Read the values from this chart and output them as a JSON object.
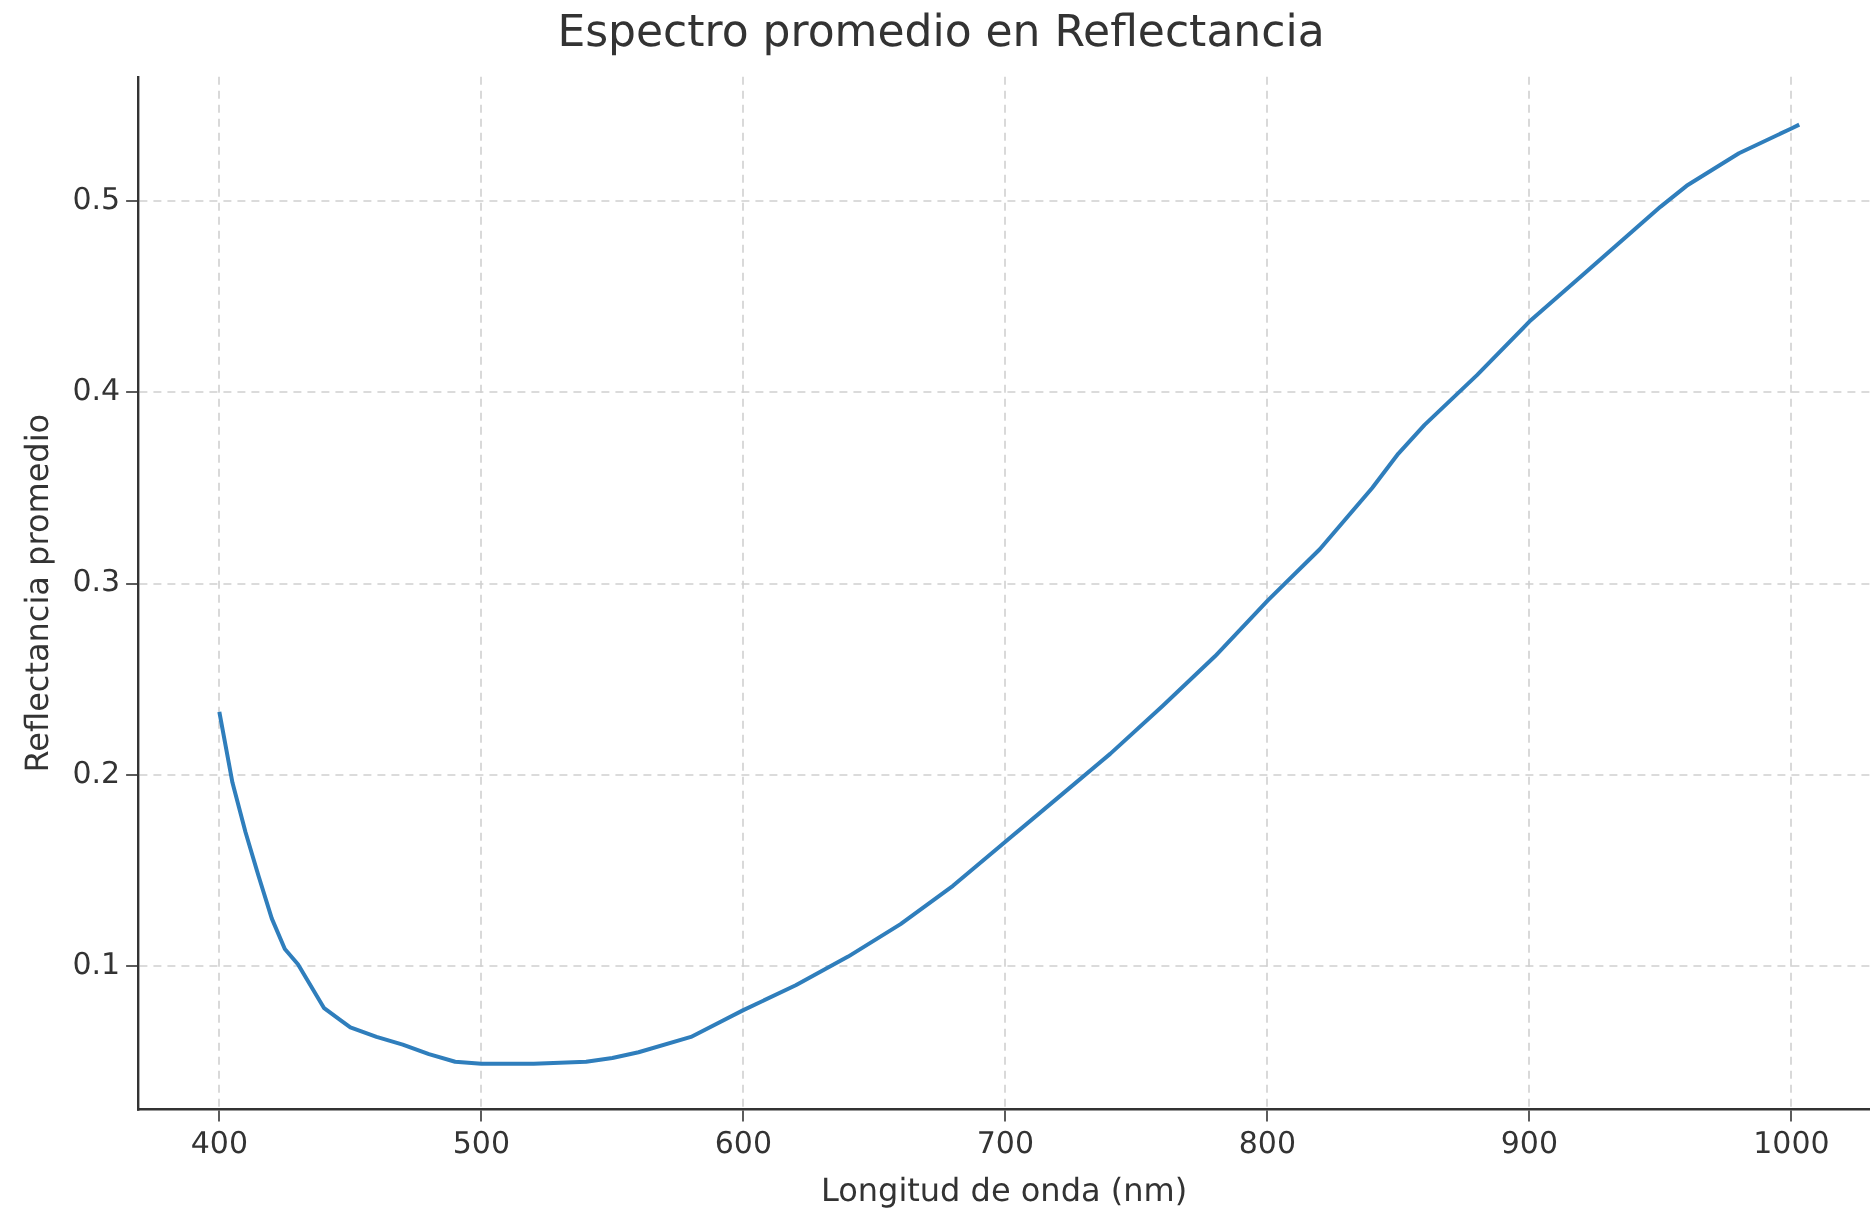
{
  "chart_data": {
    "type": "line",
    "title": "Espectro promedio en Reflectancia",
    "xlabel": "Longitud de onda (nm)",
    "ylabel": "Reflectancia promedio",
    "x": [
      400,
      405,
      410,
      415,
      420,
      425,
      430,
      440,
      450,
      460,
      470,
      480,
      490,
      500,
      520,
      540,
      550,
      560,
      580,
      600,
      620,
      640,
      660,
      680,
      700,
      720,
      740,
      760,
      780,
      800,
      820,
      840,
      850,
      860,
      880,
      900,
      920,
      940,
      950,
      960,
      980,
      1000,
      1003
    ],
    "series": [
      {
        "color": "#2f7ebc",
        "values": [
          0.233,
          0.196,
          0.17,
          0.147,
          0.125,
          0.109,
          0.101,
          0.078,
          0.068,
          0.063,
          0.059,
          0.054,
          0.05,
          0.049,
          0.049,
          0.05,
          0.052,
          0.055,
          0.063,
          0.077,
          0.09,
          0.105,
          0.122,
          0.142,
          0.165,
          0.188,
          0.211,
          0.236,
          0.262,
          0.291,
          0.318,
          0.35,
          0.368,
          0.383,
          0.409,
          0.437,
          0.461,
          0.485,
          0.497,
          0.508,
          0.525,
          0.538,
          0.54
        ]
      }
    ],
    "xlim": [
      369,
      1030
    ],
    "ylim": [
      0.025,
      0.565
    ],
    "xticks": [
      400,
      500,
      600,
      700,
      800,
      900,
      1000
    ],
    "yticks": [
      0.1,
      0.2,
      0.3,
      0.4,
      0.5
    ],
    "grid": true,
    "legend": false,
    "marker": "none",
    "line_style": "solid"
  }
}
